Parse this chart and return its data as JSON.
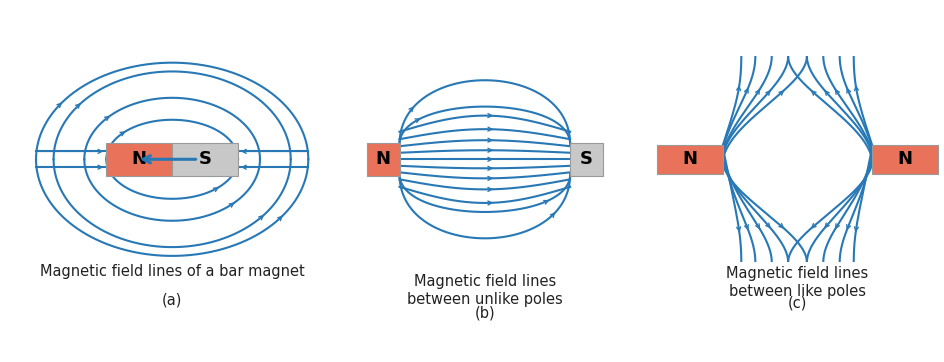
{
  "line_color": "#2878b5",
  "north_color": "#e8735a",
  "south_color": "#c8c8c8",
  "bg_color": "#ffffff",
  "text_color": "#222222",
  "label_fontsize": 10.5,
  "pole_fontsize": 13,
  "line_width": 1.5,
  "captions": [
    "Magnetic field lines of a bar magnet",
    "Magnetic field lines\nbetween unlike poles",
    "Magnetic field lines\nbetween like poles"
  ],
  "subcaptions": [
    "(a)",
    "(b)",
    "(c)"
  ]
}
